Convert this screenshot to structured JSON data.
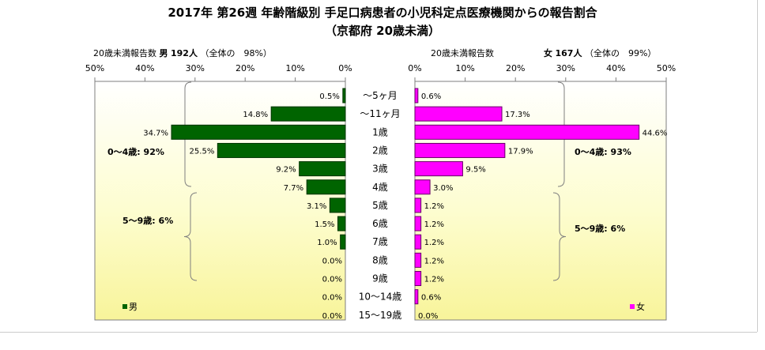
{
  "title_line1": "2017年 第26週 年齢階級別 手足口病患者の小児科定点医療機関からの報告割合",
  "title_line2": "（京都府 20歳未満）",
  "left_header": {
    "prefix": "20歳未満報告数",
    "sex": "男",
    "count": "192人",
    "share": "（全体の　98%）"
  },
  "right_header": {
    "prefix": "20歳未満報告数",
    "sex": "女",
    "count": "167人",
    "share": "（全体の　99%）"
  },
  "chart_data": {
    "type": "bar",
    "orientation": "horizontal-butterfly",
    "categories": [
      "〜5ヶ月",
      "〜11ヶ月",
      "1歳",
      "2歳",
      "3歳",
      "4歳",
      "5歳",
      "6歳",
      "7歳",
      "8歳",
      "9歳",
      "10〜14歳",
      "15〜19歳"
    ],
    "series": [
      {
        "name": "男",
        "side": "left",
        "color": "#006400",
        "values": [
          0.5,
          14.8,
          34.7,
          25.5,
          9.2,
          7.7,
          3.1,
          1.5,
          1.0,
          0.0,
          0.0,
          0.0,
          0.0
        ],
        "labels": [
          "0.5%",
          "14.8%",
          "34.7%",
          "25.5%",
          "9.2%",
          "7.7%",
          "3.1%",
          "1.5%",
          "1.0%",
          "0.0%",
          "0.0%",
          "0.0%",
          "0.0%"
        ],
        "legend": "男"
      },
      {
        "name": "女",
        "side": "right",
        "color": "#ff00ff",
        "values": [
          0.6,
          17.3,
          44.6,
          17.9,
          9.5,
          3.0,
          1.2,
          1.2,
          1.2,
          1.2,
          1.2,
          0.6,
          0.0
        ],
        "labels": [
          "0.6%",
          "17.3%",
          "44.6%",
          "17.9%",
          "9.5%",
          "3.0%",
          "1.2%",
          "1.2%",
          "1.2%",
          "1.2%",
          "1.2%",
          "0.6%",
          "0.0%"
        ],
        "legend": "女"
      }
    ],
    "xlim": [
      0,
      50
    ],
    "ticks": [
      "0%",
      "10%",
      "20%",
      "30%",
      "40%",
      "50%"
    ],
    "tick_values": [
      0,
      10,
      20,
      30,
      40,
      50
    ],
    "bracket_labels": {
      "left": [
        "0〜4歳: 92%",
        "5〜9歳: 6%"
      ],
      "right": [
        "0〜4歳: 93%",
        "5〜9歳: 6%"
      ]
    },
    "grid": false,
    "legend_placement": "bottom-left / bottom-right"
  }
}
